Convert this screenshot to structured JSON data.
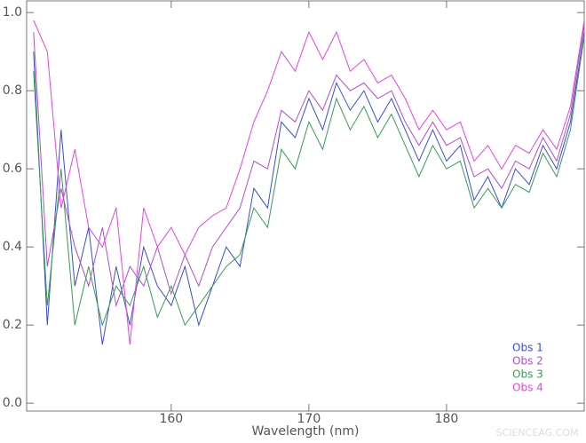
{
  "chart_data": {
    "type": "line",
    "x_label": "Wavelength (nm)",
    "watermark": "SCIENCEAG.COM",
    "x": [
      150,
      151,
      152,
      153,
      154,
      155,
      156,
      157,
      158,
      159,
      160,
      161,
      162,
      163,
      164,
      165,
      166,
      167,
      168,
      169,
      170,
      171,
      172,
      173,
      174,
      175,
      176,
      177,
      178,
      179,
      180,
      181,
      182,
      183,
      184,
      185,
      186,
      187,
      188,
      189,
      190
    ],
    "xlim": [
      149.5,
      190
    ],
    "ylim": [
      -0.02,
      1.03
    ],
    "xticks": [
      160,
      170,
      180
    ],
    "yticks": [
      {
        "value": 0,
        "label": "0.0"
      },
      0.2,
      0.4,
      0.6,
      0.8,
      {
        "value": 1,
        "label": "1.0"
      }
    ],
    "legend": "bottom-right",
    "series": [
      {
        "name": "Obs 1",
        "color": "#3b4fc4",
        "values": [
          0.9,
          0.2,
          0.7,
          0.3,
          0.45,
          0.15,
          0.35,
          0.2,
          0.4,
          0.3,
          0.25,
          0.35,
          0.2,
          0.3,
          0.4,
          0.35,
          0.55,
          0.5,
          0.72,
          0.68,
          0.78,
          0.7,
          0.82,
          0.75,
          0.8,
          0.72,
          0.78,
          0.7,
          0.62,
          0.7,
          0.62,
          0.66,
          0.52,
          0.58,
          0.5,
          0.6,
          0.56,
          0.66,
          0.6,
          0.72,
          0.95
        ]
      },
      {
        "name": "Obs 2",
        "color": "#b050c8",
        "values": [
          0.95,
          0.35,
          0.55,
          0.4,
          0.3,
          0.45,
          0.25,
          0.35,
          0.3,
          0.4,
          0.28,
          0.38,
          0.3,
          0.4,
          0.45,
          0.5,
          0.62,
          0.6,
          0.75,
          0.72,
          0.8,
          0.75,
          0.84,
          0.8,
          0.82,
          0.78,
          0.8,
          0.72,
          0.66,
          0.72,
          0.66,
          0.68,
          0.58,
          0.6,
          0.55,
          0.62,
          0.6,
          0.68,
          0.62,
          0.74,
          0.97
        ]
      },
      {
        "name": "Obs 3",
        "color": "#3a9a5a",
        "values": [
          0.85,
          0.25,
          0.6,
          0.2,
          0.35,
          0.2,
          0.3,
          0.25,
          0.35,
          0.22,
          0.3,
          0.2,
          0.25,
          0.3,
          0.35,
          0.38,
          0.5,
          0.45,
          0.65,
          0.6,
          0.72,
          0.65,
          0.78,
          0.7,
          0.76,
          0.68,
          0.74,
          0.66,
          0.58,
          0.66,
          0.6,
          0.62,
          0.5,
          0.55,
          0.5,
          0.56,
          0.54,
          0.64,
          0.58,
          0.7,
          0.94
        ]
      },
      {
        "name": "Obs 4",
        "color": "#e048e0",
        "values": [
          0.98,
          0.9,
          0.5,
          0.65,
          0.45,
          0.4,
          0.5,
          0.15,
          0.5,
          0.4,
          0.45,
          0.38,
          0.45,
          0.48,
          0.5,
          0.6,
          0.72,
          0.8,
          0.9,
          0.85,
          0.95,
          0.88,
          0.95,
          0.85,
          0.88,
          0.82,
          0.84,
          0.78,
          0.7,
          0.75,
          0.7,
          0.72,
          0.62,
          0.66,
          0.6,
          0.66,
          0.64,
          0.7,
          0.65,
          0.76,
          0.98
        ]
      }
    ]
  }
}
